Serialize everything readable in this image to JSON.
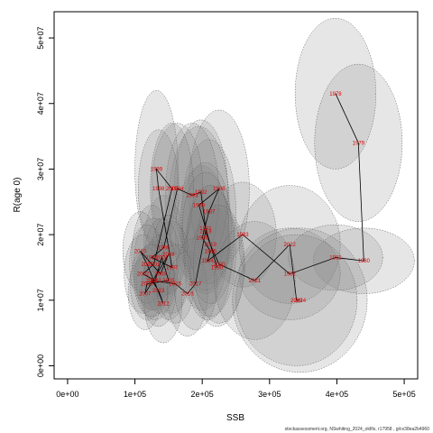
{
  "chart_data": {
    "type": "scatter",
    "title": "",
    "xlabel": "SSB",
    "ylabel": "R(age 0)",
    "xlim": [
      -20000,
      520000
    ],
    "ylim": [
      -2000000,
      54000000
    ],
    "x_ticks": [
      0,
      100000,
      200000,
      300000,
      400000,
      500000
    ],
    "x_tick_labels": [
      "0e+00",
      "1e+05",
      "2e+05",
      "3e+05",
      "4e+05",
      "5e+05"
    ],
    "y_ticks": [
      0,
      10000000,
      20000000,
      30000000,
      40000000,
      50000000
    ],
    "y_tick_labels": [
      "0e+00",
      "1e+07",
      "2e+07",
      "3e+07",
      "4e+07",
      "5e+07"
    ],
    "grid": false,
    "series": [
      {
        "points": [
          {
            "year": "1978",
            "x": 398000,
            "y": 41500000,
            "rx": 60000,
            "ry": 11500000
          },
          {
            "year": "1979",
            "x": 432000,
            "y": 34000000,
            "rx": 65000,
            "ry": 12000000
          },
          {
            "year": "1980",
            "x": 440000,
            "y": 16000000,
            "rx": 75000,
            "ry": 5000000
          },
          {
            "year": "1981",
            "x": 398000,
            "y": 16500000,
            "rx": 70000,
            "ry": 5000000
          },
          {
            "year": "1982",
            "x": 330000,
            "y": 14000000,
            "rx": 75000,
            "ry": 7000000
          },
          {
            "year": "1983",
            "x": 260000,
            "y": 20000000,
            "rx": 50000,
            "ry": 8000000
          },
          {
            "year": "1984",
            "x": 208000,
            "y": 16000000,
            "rx": 35000,
            "ry": 9000000
          },
          {
            "year": "1985",
            "x": 212000,
            "y": 17500000,
            "rx": 38000,
            "ry": 10000000
          },
          {
            "year": "1986",
            "x": 200000,
            "y": 19500000,
            "rx": 40000,
            "ry": 11000000
          },
          {
            "year": "1987",
            "x": 210000,
            "y": 23500000,
            "rx": 40000,
            "ry": 11000000
          },
          {
            "year": "1988",
            "x": 225000,
            "y": 27000000,
            "rx": 45000,
            "ry": 12000000
          },
          {
            "year": "1989",
            "x": 195000,
            "y": 24500000,
            "rx": 45000,
            "ry": 12000000
          },
          {
            "year": "1990",
            "x": 222000,
            "y": 15000000,
            "rx": 40000,
            "ry": 9000000
          },
          {
            "year": "1991",
            "x": 205000,
            "y": 21000000,
            "rx": 38000,
            "ry": 10000000
          },
          {
            "year": "1992",
            "x": 198000,
            "y": 26500000,
            "rx": 40000,
            "ry": 11000000
          },
          {
            "year": "1993",
            "x": 185000,
            "y": 26000000,
            "rx": 40000,
            "ry": 11000000
          },
          {
            "year": "1994",
            "x": 163000,
            "y": 27000000,
            "rx": 38000,
            "ry": 10000000
          },
          {
            "year": "1995",
            "x": 143000,
            "y": 18000000,
            "rx": 30000,
            "ry": 8000000
          },
          {
            "year": "1996",
            "x": 125000,
            "y": 16500000,
            "rx": 30000,
            "ry": 8000000
          },
          {
            "year": "1997",
            "x": 155000,
            "y": 15000000,
            "rx": 28000,
            "ry": 7000000
          },
          {
            "year": "1998",
            "x": 135000,
            "y": 27000000,
            "rx": 30000,
            "ry": 9000000
          },
          {
            "year": "1999",
            "x": 132000,
            "y": 30000000,
            "rx": 32000,
            "ry": 12000000
          },
          {
            "year": "2000",
            "x": 155000,
            "y": 27000000,
            "rx": 32000,
            "ry": 10000000
          },
          {
            "year": "2001",
            "x": 128000,
            "y": 15500000,
            "rx": 30000,
            "ry": 7000000
          },
          {
            "year": "2002",
            "x": 112000,
            "y": 14000000,
            "rx": 28000,
            "ry": 6000000
          },
          {
            "year": "2003",
            "x": 130000,
            "y": 13000000,
            "rx": 28000,
            "ry": 6000000
          },
          {
            "year": "2004",
            "x": 140000,
            "y": 16500000,
            "rx": 26000,
            "ry": 6000000
          },
          {
            "year": "2005",
            "x": 150000,
            "y": 13000000,
            "rx": 26000,
            "ry": 6000000
          },
          {
            "year": "2006",
            "x": 118000,
            "y": 12500000,
            "rx": 25000,
            "ry": 5500000
          },
          {
            "year": "2007",
            "x": 115000,
            "y": 11000000,
            "rx": 25000,
            "ry": 5500000
          },
          {
            "year": "2008",
            "x": 150000,
            "y": 17000000,
            "rx": 25000,
            "ry": 6000000
          },
          {
            "year": "2009",
            "x": 138000,
            "y": 14000000,
            "rx": 25000,
            "ry": 6000000
          },
          {
            "year": "2010",
            "x": 108000,
            "y": 17500000,
            "rx": 26000,
            "ry": 6000000
          },
          {
            "year": "2011",
            "x": 118000,
            "y": 15500000,
            "rx": 26000,
            "ry": 6000000
          },
          {
            "year": "2012",
            "x": 142000,
            "y": 9500000,
            "rx": 28000,
            "ry": 6000000
          },
          {
            "year": "2013",
            "x": 135000,
            "y": 11500000,
            "rx": 26000,
            "ry": 5500000
          },
          {
            "year": "2014",
            "x": 125000,
            "y": 13000000,
            "rx": 26000,
            "ry": 5500000
          },
          {
            "year": "2015",
            "x": 160000,
            "y": 12500000,
            "rx": 28000,
            "ry": 6000000
          },
          {
            "year": "2016",
            "x": 178000,
            "y": 11000000,
            "rx": 30000,
            "ry": 6500000
          },
          {
            "year": "2017",
            "x": 190000,
            "y": 12500000,
            "rx": 32000,
            "ry": 7000000
          },
          {
            "year": "2018",
            "x": 205000,
            "y": 20500000,
            "rx": 35000,
            "ry": 9000000
          },
          {
            "year": "2019",
            "x": 212000,
            "y": 18500000,
            "rx": 35000,
            "ry": 9000000
          },
          {
            "year": "2020",
            "x": 225000,
            "y": 15500000,
            "rx": 38000,
            "ry": 9000000
          },
          {
            "year": "2021",
            "x": 278000,
            "y": 13000000,
            "rx": 60000,
            "ry": 9000000
          },
          {
            "year": "2022",
            "x": 330000,
            "y": 18500000,
            "rx": 75000,
            "ry": 9000000
          },
          {
            "year": "2023",
            "x": 340000,
            "y": 10000000,
            "rx": 90000,
            "ry": 10000000
          },
          {
            "year": "2024",
            "x": 345000,
            "y": 10000000,
            "rx": 100000,
            "ry": 11000000
          }
        ]
      }
    ]
  },
  "footer": "stockassessment.org, NSwhiting_2024_oldfix, r17958 , git:e38ea2b4960"
}
